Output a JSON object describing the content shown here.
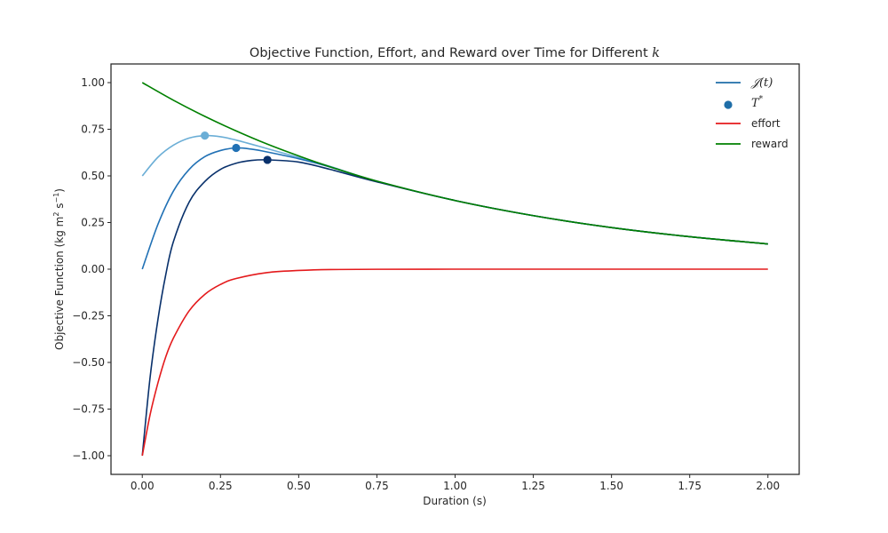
{
  "chart_data": {
    "type": "line",
    "title_text": "Objective Function, Effort, and Reward over Time for Different",
    "title_var": "k",
    "xlabel": "Duration (s)",
    "ylabel_main": "Objective Function (kg m",
    "ylabel_sup1": "2",
    "ylabel_mid": " s",
    "ylabel_sup2": "−1",
    "ylabel_end": ")",
    "xlim": [
      -0.1,
      2.1
    ],
    "ylim": [
      -1.1,
      1.1
    ],
    "xticks": [
      0.0,
      0.25,
      0.5,
      0.75,
      1.0,
      1.25,
      1.5,
      1.75,
      2.0
    ],
    "xtick_labels": [
      "0.00",
      "0.25",
      "0.50",
      "0.75",
      "1.00",
      "1.25",
      "1.50",
      "1.75",
      "2.00"
    ],
    "yticks": [
      -1.0,
      -0.75,
      -0.5,
      -0.25,
      0.0,
      0.25,
      0.5,
      0.75,
      1.0
    ],
    "ytick_labels": [
      "−1.00",
      "−0.75",
      "−0.50",
      "−0.25",
      "0.00",
      "0.25",
      "0.50",
      "0.75",
      "1.00"
    ],
    "grid": false,
    "legend_placement": "top-right",
    "legend": [
      {
        "label_math": "𝒥(t)",
        "color": "#1f6ea8",
        "kind": "line"
      },
      {
        "label_math": "T*",
        "color": "#1f6ea8",
        "kind": "marker"
      },
      {
        "label": "effort",
        "color": "#e41a1c",
        "kind": "line"
      },
      {
        "label": "reward",
        "color": "#008000",
        "kind": "line"
      }
    ],
    "series": [
      {
        "key": "J_k1",
        "color": "#6baed6",
        "x": [
          0.0,
          0.05,
          0.1,
          0.15,
          0.2,
          0.25,
          0.3,
          0.4,
          0.5,
          0.6,
          0.75,
          1.0,
          1.25,
          1.5,
          1.75,
          2.0
        ],
        "y": [
          0.5,
          0.6,
          0.665,
          0.703,
          0.716,
          0.71,
          0.692,
          0.646,
          0.599,
          0.551,
          0.472,
          0.368,
          0.287,
          0.223,
          0.174,
          0.135
        ]
      },
      {
        "key": "J_k2",
        "color": "#2171b5",
        "x": [
          0.0,
          0.05,
          0.1,
          0.15,
          0.2,
          0.25,
          0.3,
          0.35,
          0.4,
          0.5,
          0.6,
          0.75,
          1.0,
          1.25,
          1.5,
          1.75,
          2.0
        ],
        "y": [
          0.0,
          0.24,
          0.42,
          0.535,
          0.603,
          0.636,
          0.65,
          0.643,
          0.628,
          0.592,
          0.548,
          0.471,
          0.368,
          0.287,
          0.223,
          0.174,
          0.135
        ]
      },
      {
        "key": "J_k3",
        "color": "#08306b",
        "x": [
          0.0,
          0.025,
          0.05,
          0.075,
          0.1,
          0.15,
          0.2,
          0.25,
          0.3,
          0.35,
          0.4,
          0.5,
          0.6,
          0.75,
          1.0,
          1.25,
          1.5,
          1.75,
          2.0
        ],
        "y": [
          -1.0,
          -0.58,
          -0.27,
          -0.03,
          0.15,
          0.36,
          0.47,
          0.535,
          0.568,
          0.583,
          0.586,
          0.574,
          0.535,
          0.468,
          0.368,
          0.287,
          0.223,
          0.174,
          0.135
        ]
      },
      {
        "key": "effort",
        "color": "#e41a1c",
        "x": [
          0.0,
          0.025,
          0.05,
          0.075,
          0.1,
          0.15,
          0.2,
          0.25,
          0.3,
          0.4,
          0.5,
          0.6,
          0.75,
          1.0,
          1.25,
          1.5,
          1.75,
          2.0
        ],
        "y": [
          -1.0,
          -0.78,
          -0.61,
          -0.47,
          -0.368,
          -0.223,
          -0.135,
          -0.082,
          -0.05,
          -0.018,
          -0.007,
          -0.002,
          -0.0006,
          0.0,
          0.0,
          0.0,
          0.0,
          0.0
        ]
      },
      {
        "key": "reward",
        "color": "#008000",
        "x": [
          0.0,
          0.1,
          0.2,
          0.3,
          0.4,
          0.5,
          0.6,
          0.75,
          1.0,
          1.25,
          1.5,
          1.75,
          2.0
        ],
        "y": [
          1.0,
          0.905,
          0.819,
          0.741,
          0.67,
          0.607,
          0.549,
          0.472,
          0.368,
          0.287,
          0.223,
          0.174,
          0.135
        ]
      }
    ],
    "optima": [
      {
        "x": 0.2,
        "y": 0.716,
        "color": "#6baed6"
      },
      {
        "x": 0.3,
        "y": 0.65,
        "color": "#2171b5"
      },
      {
        "x": 0.4,
        "y": 0.586,
        "color": "#08306b"
      }
    ]
  }
}
